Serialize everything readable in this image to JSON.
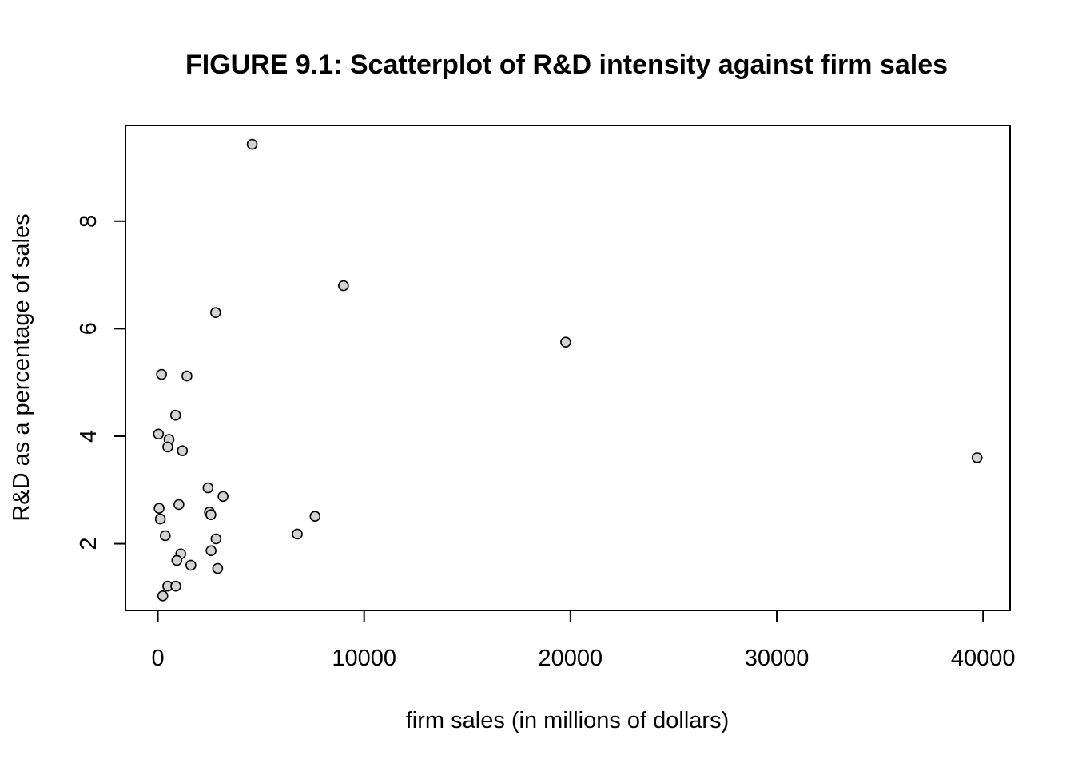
{
  "chart_data": {
    "type": "scatter",
    "title": "FIGURE 9.1: Scatterplot of R&D intensity against firm sales",
    "xlabel": "firm sales (in millions of dollars)",
    "ylabel": "R&D as a percentage of sales",
    "xlim": [
      -1570,
      41310
    ],
    "ylim": [
      0.76,
      9.78
    ],
    "x_ticks": [
      0,
      10000,
      20000,
      30000,
      40000
    ],
    "y_ticks": [
      2,
      4,
      6,
      8
    ],
    "grid": false,
    "marker_fill": "#d3d3d3",
    "points": [
      {
        "x": 4570,
        "y": 9.43
      },
      {
        "x": 9000,
        "y": 6.8
      },
      {
        "x": 2800,
        "y": 6.3
      },
      {
        "x": 19770,
        "y": 5.75
      },
      {
        "x": 180,
        "y": 5.15
      },
      {
        "x": 1410,
        "y": 5.12
      },
      {
        "x": 860,
        "y": 4.39
      },
      {
        "x": 30,
        "y": 4.04
      },
      {
        "x": 540,
        "y": 3.94
      },
      {
        "x": 480,
        "y": 3.8
      },
      {
        "x": 1190,
        "y": 3.73
      },
      {
        "x": 39710,
        "y": 3.6
      },
      {
        "x": 2430,
        "y": 3.04
      },
      {
        "x": 3160,
        "y": 2.88
      },
      {
        "x": 1020,
        "y": 2.73
      },
      {
        "x": 60,
        "y": 2.66
      },
      {
        "x": 2500,
        "y": 2.59
      },
      {
        "x": 2570,
        "y": 2.54
      },
      {
        "x": 7620,
        "y": 2.51
      },
      {
        "x": 120,
        "y": 2.46
      },
      {
        "x": 6760,
        "y": 2.18
      },
      {
        "x": 360,
        "y": 2.15
      },
      {
        "x": 2820,
        "y": 2.09
      },
      {
        "x": 2580,
        "y": 1.87
      },
      {
        "x": 1110,
        "y": 1.81
      },
      {
        "x": 920,
        "y": 1.69
      },
      {
        "x": 1600,
        "y": 1.6
      },
      {
        "x": 2900,
        "y": 1.54
      },
      {
        "x": 480,
        "y": 1.21
      },
      {
        "x": 870,
        "y": 1.21
      },
      {
        "x": 240,
        "y": 1.03
      }
    ]
  }
}
